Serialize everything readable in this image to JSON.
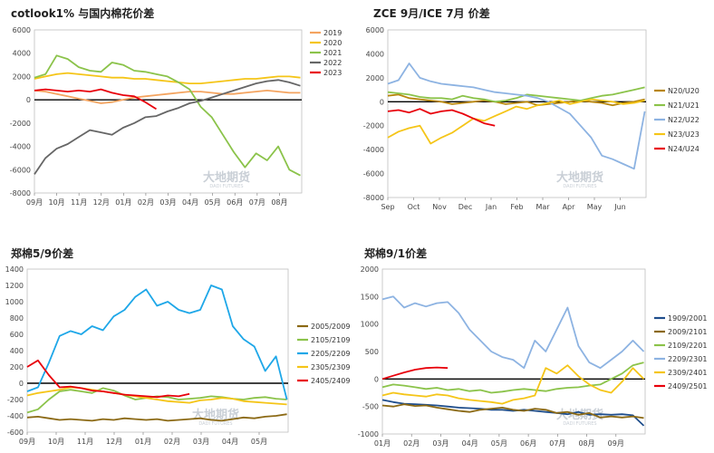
{
  "watermark": {
    "text": "大地期货",
    "subtext": "DADI FUTURES"
  },
  "chart_data": [
    {
      "type": "line",
      "title": "cotlook1% 与国内棉花价差",
      "x_ticks": [
        "09月",
        "10月",
        "11月",
        "12月",
        "01月",
        "02月",
        "03月",
        "04月",
        "05月",
        "06月",
        "07月",
        "08月"
      ],
      "ylim": [
        -8000,
        6000
      ],
      "yticks": [
        6000,
        4000,
        2000,
        0,
        -2000,
        -4000,
        -6000,
        -8000
      ],
      "legend_position": "right",
      "series": [
        {
          "name": "2019",
          "color": "#f4a460",
          "values": [
            800,
            700,
            500,
            300,
            100,
            -100,
            -300,
            -200,
            0,
            200,
            300,
            400,
            500,
            600,
            700,
            700,
            600,
            500,
            500,
            600,
            700,
            800,
            700,
            600,
            600
          ]
        },
        {
          "name": "2020",
          "color": "#f5c518",
          "values": [
            1800,
            2000,
            2200,
            2300,
            2200,
            2100,
            2000,
            1900,
            1900,
            1800,
            1800,
            1700,
            1600,
            1500,
            1400,
            1400,
            1500,
            1600,
            1700,
            1800,
            1800,
            1900,
            2000,
            2000,
            1900
          ]
        },
        {
          "name": "2021",
          "color": "#8bc34a",
          "values": [
            1900,
            2200,
            3800,
            3500,
            2800,
            2500,
            2400,
            3200,
            3000,
            2500,
            2400,
            2200,
            2000,
            1500,
            900,
            -600,
            -1500,
            -3000,
            -4500,
            -5800,
            -4600,
            -5200,
            -4000,
            -6000,
            -6500
          ]
        },
        {
          "name": "2022",
          "color": "#666666",
          "values": [
            -6400,
            -5000,
            -4200,
            -3800,
            -3200,
            -2600,
            -2800,
            -3000,
            -2400,
            -2000,
            -1500,
            -1400,
            -1000,
            -700,
            -300,
            -100,
            200,
            500,
            800,
            1100,
            1400,
            1600,
            1700,
            1500,
            1200
          ]
        },
        {
          "name": "2023",
          "color": "#e8000b",
          "values": [
            800,
            900,
            800,
            700,
            800,
            700,
            900,
            600,
            400,
            300,
            -200,
            -800,
            null,
            null,
            null,
            null,
            null,
            null,
            null,
            null,
            null,
            null,
            null,
            null,
            null
          ]
        }
      ]
    },
    {
      "type": "line",
      "title": "ZCE 9月/ICE 7月 价差",
      "x_ticks": [
        "Sep",
        "Oct",
        "Nov",
        "Dec",
        "Jan",
        "Feb",
        "Mar",
        "Apr",
        "May",
        "Jun"
      ],
      "ylim": [
        -8000,
        6000
      ],
      "yticks": [
        6000,
        4000,
        2000,
        0,
        -2000,
        -4000,
        -6000,
        -8000
      ],
      "legend_position": "right",
      "series": [
        {
          "name": "N20/U20",
          "color": "#b8860b",
          "values": [
            500,
            600,
            300,
            200,
            100,
            0,
            -200,
            -100,
            0,
            100,
            0,
            -200,
            -100,
            0,
            -300,
            -200,
            -100,
            0,
            100,
            0,
            -100,
            -300,
            -100,
            0,
            200
          ]
        },
        {
          "name": "N21/U21",
          "color": "#8bc34a",
          "values": [
            800,
            700,
            600,
            400,
            300,
            300,
            200,
            500,
            300,
            200,
            0,
            100,
            300,
            600,
            500,
            400,
            300,
            200,
            100,
            300,
            500,
            600,
            800,
            1000,
            1200
          ]
        },
        {
          "name": "N22/U22",
          "color": "#8db3e2",
          "values": [
            1500,
            1800,
            3200,
            2000,
            1700,
            1500,
            1400,
            1300,
            1200,
            1000,
            800,
            700,
            600,
            500,
            300,
            0,
            -500,
            -1000,
            -2000,
            -3000,
            -4500,
            -4800,
            -5200,
            -5600,
            -800
          ]
        },
        {
          "name": "N23/U23",
          "color": "#f5c518",
          "values": [
            -3000,
            -2500,
            -2200,
            -2000,
            -3500,
            -3000,
            -2600,
            -2000,
            -1400,
            -1600,
            -1200,
            -800,
            -400,
            -600,
            -300,
            -100,
            100,
            -200,
            0,
            200,
            100,
            0,
            -200,
            -100,
            100
          ]
        },
        {
          "name": "N24/U24",
          "color": "#e8000b",
          "values": [
            -800,
            -700,
            -900,
            -600,
            -1000,
            -800,
            -700,
            -1000,
            -1400,
            -1800,
            -2000,
            null,
            null,
            null,
            null,
            null,
            null,
            null,
            null,
            null,
            null,
            null,
            null,
            null,
            null
          ]
        }
      ]
    },
    {
      "type": "line",
      "title": "郑棉5/9价差",
      "x_ticks": [
        "09月",
        "10月",
        "11月",
        "12月",
        "01月",
        "02月",
        "03月",
        "04月",
        "05月"
      ],
      "ylim": [
        -600,
        1400
      ],
      "yticks": [
        1400,
        1200,
        1000,
        800,
        600,
        400,
        200,
        0,
        -200,
        -400,
        -600
      ],
      "legend_position": "right",
      "series": [
        {
          "name": "2005/2009",
          "color": "#8b6914",
          "values": [
            -420,
            -410,
            -430,
            -450,
            -440,
            -450,
            -460,
            -440,
            -450,
            -430,
            -440,
            -450,
            -440,
            -460,
            -450,
            -440,
            -430,
            -450,
            -460,
            -440,
            -420,
            -430,
            -410,
            -400,
            -380
          ]
        },
        {
          "name": "2105/2109",
          "color": "#8bc34a",
          "values": [
            -360,
            -320,
            -200,
            -100,
            -80,
            -100,
            -120,
            -60,
            -90,
            -150,
            -200,
            -180,
            -160,
            -170,
            -200,
            -190,
            -180,
            -160,
            -170,
            -190,
            -200,
            -180,
            -170,
            -190,
            -200
          ]
        },
        {
          "name": "2205/2209",
          "color": "#1ea7e8",
          "values": [
            -100,
            -50,
            250,
            580,
            640,
            600,
            700,
            650,
            820,
            900,
            1060,
            1150,
            950,
            1000,
            900,
            860,
            900,
            1200,
            1150,
            700,
            540,
            450,
            150,
            330,
            -200
          ]
        },
        {
          "name": "2305/2309",
          "color": "#f5c518",
          "values": [
            -150,
            -120,
            -100,
            -80,
            -50,
            -60,
            -80,
            -100,
            -120,
            -140,
            -160,
            -180,
            -200,
            -220,
            -230,
            -240,
            -210,
            -200,
            -180,
            -190,
            -220,
            -230,
            -240,
            -250,
            -260
          ]
        },
        {
          "name": "2405/2409",
          "color": "#e8000b",
          "values": [
            200,
            280,
            100,
            -50,
            -40,
            -60,
            -90,
            -100,
            -120,
            -140,
            -150,
            -160,
            -170,
            -150,
            -160,
            -130,
            null,
            null,
            null,
            null,
            null,
            null,
            null,
            null,
            null
          ]
        }
      ]
    },
    {
      "type": "line",
      "title": "郑棉9/1价差",
      "x_ticks": [
        "01月",
        "02月",
        "03月",
        "04月",
        "05月",
        "06月",
        "07月",
        "08月",
        "09月"
      ],
      "ylim": [
        -1000,
        2000
      ],
      "yticks": [
        2000,
        1500,
        1000,
        500,
        0,
        -500,
        -1000
      ],
      "legend_position": "right",
      "series": [
        {
          "name": "1909/2001",
          "color": "#1f4e8c",
          "values": [
            -380,
            -420,
            -450,
            -460,
            -470,
            -480,
            -500,
            -520,
            -530,
            -540,
            -560,
            -560,
            -580,
            -560,
            -580,
            -600,
            -620,
            -640,
            -600,
            -650,
            -640,
            -650,
            -640,
            -660,
            -850
          ]
        },
        {
          "name": "2009/2101",
          "color": "#8b6914",
          "values": [
            -480,
            -500,
            -460,
            -490,
            -480,
            -520,
            -550,
            -580,
            -600,
            -560,
            -540,
            -520,
            -560,
            -580,
            -540,
            -560,
            -620,
            -600,
            -650,
            -620,
            -700,
            -680,
            -700,
            -680,
            -710
          ]
        },
        {
          "name": "2109/2201",
          "color": "#8bc34a",
          "values": [
            -150,
            -100,
            -120,
            -150,
            -180,
            -160,
            -200,
            -180,
            -220,
            -200,
            -250,
            -230,
            -200,
            -180,
            -200,
            -220,
            -180,
            -160,
            -150,
            -120,
            -100,
            0,
            100,
            250,
            300
          ]
        },
        {
          "name": "2209/2301",
          "color": "#8db3e2",
          "values": [
            1450,
            1500,
            1300,
            1380,
            1320,
            1380,
            1400,
            1200,
            900,
            700,
            500,
            400,
            350,
            200,
            700,
            500,
            900,
            1300,
            600,
            300,
            200,
            350,
            500,
            700,
            500
          ]
        },
        {
          "name": "2309/2401",
          "color": "#f5c518",
          "values": [
            -300,
            -250,
            -280,
            -300,
            -320,
            -280,
            -300,
            -350,
            -380,
            -400,
            -420,
            -450,
            -380,
            -350,
            -300,
            200,
            100,
            250,
            50,
            -100,
            -200,
            -250,
            -50,
            200,
            0
          ]
        },
        {
          "name": "2409/2501",
          "color": "#e8000b",
          "values": [
            0,
            60,
            120,
            170,
            200,
            210,
            200,
            null,
            null,
            null,
            null,
            null,
            null,
            null,
            null,
            null,
            null,
            null,
            null,
            null,
            null,
            null,
            null,
            null,
            null
          ]
        }
      ]
    }
  ]
}
